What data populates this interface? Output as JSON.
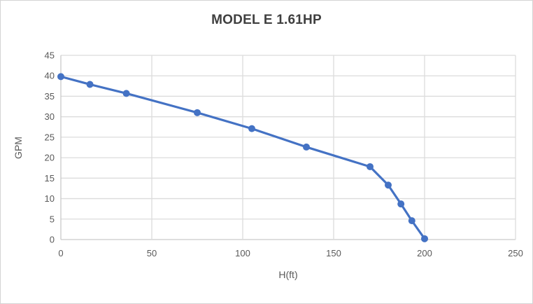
{
  "chart_data": {
    "type": "line",
    "title": "MODEL E 1.61HP",
    "xlabel": "H(ft)",
    "ylabel": "GPM",
    "x": [
      0,
      16,
      36,
      75,
      105,
      135,
      170,
      180,
      187,
      193,
      200
    ],
    "y": [
      39.8,
      37.9,
      35.7,
      31.0,
      27.1,
      22.6,
      17.8,
      13.3,
      8.7,
      4.6,
      0.2
    ],
    "xlim": [
      0,
      250
    ],
    "ylim": [
      0,
      45
    ],
    "x_ticks": [
      0,
      50,
      100,
      150,
      200,
      250
    ],
    "y_ticks": [
      0,
      5,
      10,
      15,
      20,
      25,
      30,
      35,
      40,
      45
    ],
    "grid": true,
    "legend": false,
    "colors": {
      "series": "#4472C4",
      "gridline": "#DCDCDC",
      "axis_line": "#C9C9C9",
      "tick_label": "#595959",
      "axis_title": "#595959",
      "title": "#3F3F3F",
      "frame_border": "#D4D4D4"
    },
    "marker": "circle",
    "marker_radius": 5,
    "line_width": 3.2
  }
}
